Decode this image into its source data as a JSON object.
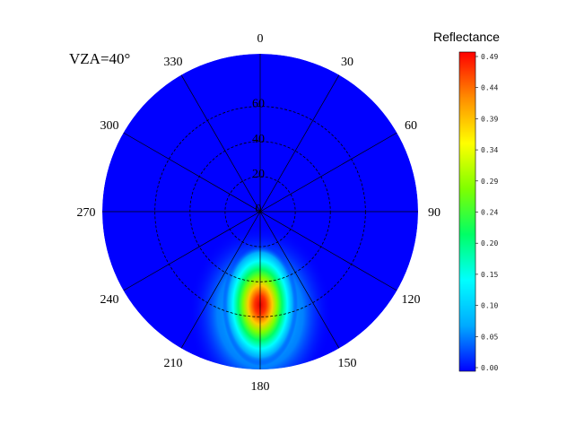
{
  "chart_data": {
    "type": "heatmap",
    "projection": "polar",
    "annotation": "VZA=40°",
    "angular_axis": {
      "ticks": [
        "0",
        "30",
        "60",
        "90",
        "120",
        "150",
        "180",
        "210",
        "240",
        "270",
        "300",
        "330"
      ],
      "direction": "clockwise",
      "zero_at": "top"
    },
    "radial_axis": {
      "ticks": [
        "0",
        "20",
        "40",
        "60"
      ],
      "range": [
        0,
        90
      ],
      "grid": true
    },
    "colorbar": {
      "title": "Reflectance",
      "ticks": [
        "0.00",
        "0.05",
        "0.10",
        "0.15",
        "0.20",
        "0.24",
        "0.29",
        "0.34",
        "0.39",
        "0.44",
        "0.49"
      ],
      "range": [
        0.0,
        0.49
      ],
      "colormap": [
        "#0000ff",
        "#00aaff",
        "#00ffff",
        "#00ff66",
        "#7fff00",
        "#ffff00",
        "#ff8c00",
        "#ff0000"
      ]
    },
    "hotspot": {
      "azimuth_deg": 180,
      "zenith_deg": 40,
      "peak_reflectance": 0.49
    },
    "background_reflectance": 0.0
  }
}
